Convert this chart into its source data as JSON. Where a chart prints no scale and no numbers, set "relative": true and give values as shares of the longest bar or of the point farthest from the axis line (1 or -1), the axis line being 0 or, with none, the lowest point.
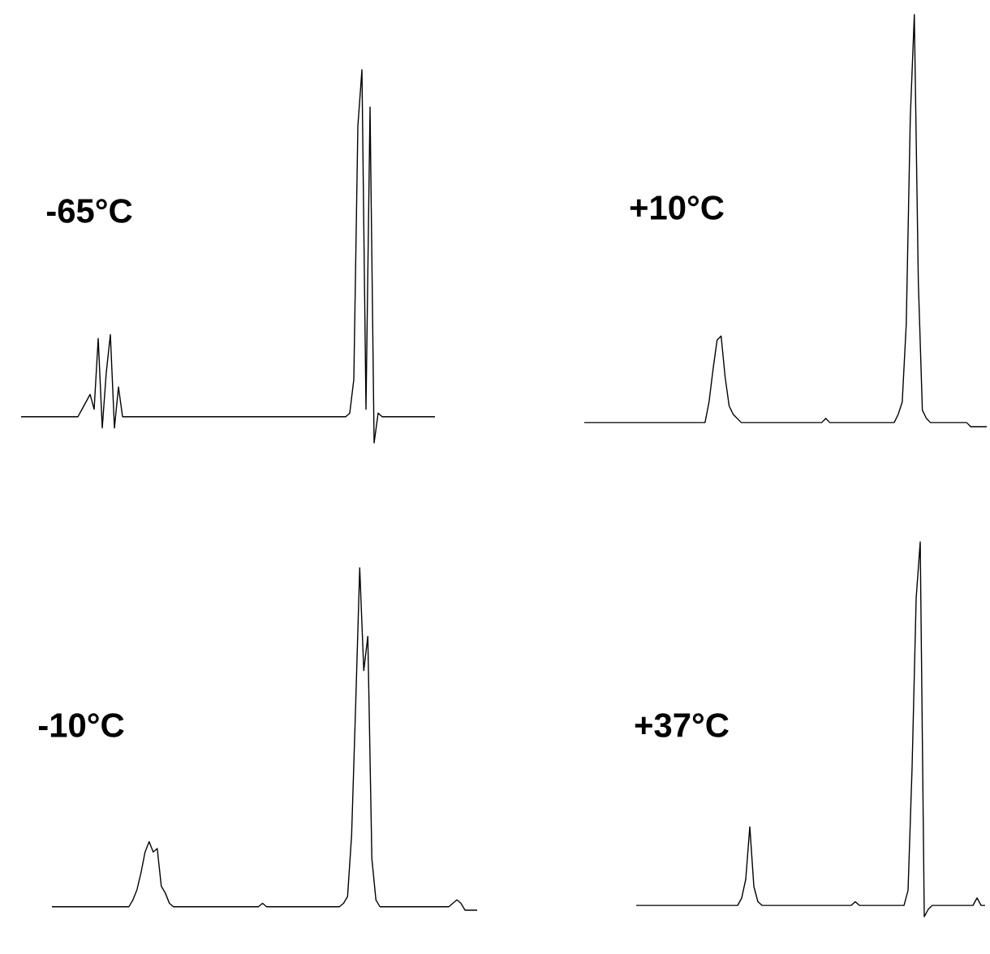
{
  "chart_data": [
    {
      "type": "line",
      "title": "-65°C",
      "relative": true,
      "categories": [
        null,
        null,
        null,
        null,
        null,
        null,
        null,
        null,
        null,
        null,
        null,
        null,
        null,
        null,
        null,
        null,
        null,
        null,
        null,
        null,
        null,
        null,
        null,
        null,
        null,
        null,
        null,
        null,
        null,
        null,
        null,
        null,
        null,
        null,
        null,
        null,
        null,
        null,
        null,
        null,
        null,
        null,
        null,
        null,
        null,
        null,
        null,
        null,
        null,
        null,
        null,
        null,
        null,
        null,
        null,
        null,
        null,
        null,
        null,
        null,
        null,
        null,
        null,
        null,
        null,
        null,
        null,
        null,
        null,
        null,
        null,
        null,
        null,
        null,
        null,
        null,
        null,
        null,
        null,
        null,
        null,
        null,
        null,
        null,
        null,
        null,
        null,
        null,
        null,
        null,
        null,
        null,
        null,
        null,
        null,
        null,
        null,
        null,
        null,
        null,
        null,
        null,
        null
      ],
      "series": [
        {
          "color": "#000000",
          "values": [
            0.07,
            0.07,
            0.07,
            0.07,
            0.07,
            0.07,
            0.07,
            0.07,
            0.07,
            0.07,
            0.07,
            0.07,
            0.07,
            0.07,
            0.07,
            0.09,
            0.11,
            0.13,
            0.09,
            0.28,
            0.04,
            0.19,
            0.29,
            0.04,
            0.15,
            0.07,
            0.07,
            0.07,
            0.07,
            0.07,
            0.07,
            0.07,
            0.07,
            0.07,
            0.07,
            0.07,
            0.07,
            0.07,
            0.07,
            0.07,
            0.07,
            0.07,
            0.07,
            0.07,
            0.07,
            0.07,
            0.07,
            0.07,
            0.07,
            0.07,
            0.07,
            0.07,
            0.07,
            0.07,
            0.07,
            0.07,
            0.07,
            0.07,
            0.07,
            0.07,
            0.07,
            0.07,
            0.07,
            0.07,
            0.07,
            0.07,
            0.07,
            0.07,
            0.07,
            0.07,
            0.07,
            0.07,
            0.07,
            0.07,
            0.07,
            0.07,
            0.07,
            0.07,
            0.07,
            0.07,
            0.07,
            0.08,
            0.17,
            0.85,
            1,
            0.09,
            0.9,
            0,
            0.08,
            0.07,
            0.07,
            0.07,
            0.07,
            0.07,
            0.07,
            0.07,
            0.07,
            0.07,
            0.07,
            0.07,
            0.07,
            0.07,
            0.07
          ]
        }
      ]
    },
    {
      "type": "line",
      "title": "+10°C",
      "relative": true,
      "categories": [
        null,
        null,
        null,
        null,
        null,
        null,
        null,
        null,
        null,
        null,
        null,
        null,
        null,
        null,
        null,
        null,
        null,
        null,
        null,
        null,
        null,
        null,
        null,
        null,
        null,
        null,
        null,
        null,
        null,
        null,
        null,
        null,
        null,
        null,
        null,
        null,
        null,
        null,
        null,
        null,
        null,
        null,
        null,
        null,
        null,
        null,
        null,
        null,
        null,
        null,
        null,
        null,
        null,
        null,
        null,
        null,
        null,
        null,
        null,
        null,
        null,
        null,
        null,
        null,
        null,
        null,
        null,
        null,
        null,
        null,
        null,
        null,
        null,
        null,
        null,
        null,
        null,
        null,
        null,
        null,
        null,
        null,
        null,
        null,
        null,
        null,
        null,
        null,
        null,
        null,
        null,
        null,
        null,
        null,
        null,
        null,
        null,
        null,
        null,
        null,
        null
      ],
      "series": [
        {
          "color": "#000000",
          "values": [
            0.01,
            0.01,
            0.01,
            0.01,
            0.01,
            0.01,
            0.01,
            0.01,
            0.01,
            0.01,
            0.01,
            0.01,
            0.01,
            0.01,
            0.01,
            0.01,
            0.01,
            0.01,
            0.01,
            0.01,
            0.01,
            0.01,
            0.01,
            0.01,
            0.01,
            0.01,
            0.01,
            0.01,
            0.01,
            0.01,
            0.01,
            0.06,
            0.14,
            0.21,
            0.22,
            0.12,
            0.05,
            0.03,
            0.02,
            0.01,
            0.01,
            0.01,
            0.01,
            0.01,
            0.01,
            0.01,
            0.01,
            0.01,
            0.01,
            0.01,
            0.01,
            0.01,
            0.01,
            0.01,
            0.01,
            0.01,
            0.01,
            0.01,
            0.01,
            0.01,
            0.02,
            0.01,
            0.01,
            0.01,
            0.01,
            0.01,
            0.01,
            0.01,
            0.01,
            0.01,
            0.01,
            0.01,
            0.01,
            0.01,
            0.01,
            0.01,
            0.01,
            0.01,
            0.03,
            0.06,
            0.25,
            0.75,
            1,
            0.35,
            0.04,
            0.02,
            0.01,
            0.01,
            0.01,
            0.01,
            0.01,
            0.01,
            0.01,
            0.01,
            0.01,
            0.01,
            0,
            0,
            0,
            0,
            0
          ]
        }
      ]
    },
    {
      "type": "line",
      "title": "-10°C",
      "relative": true,
      "categories": [
        null,
        null,
        null,
        null,
        null,
        null,
        null,
        null,
        null,
        null,
        null,
        null,
        null,
        null,
        null,
        null,
        null,
        null,
        null,
        null,
        null,
        null,
        null,
        null,
        null,
        null,
        null,
        null,
        null,
        null,
        null,
        null,
        null,
        null,
        null,
        null,
        null,
        null,
        null,
        null,
        null,
        null,
        null,
        null,
        null,
        null,
        null,
        null,
        null,
        null,
        null,
        null,
        null,
        null,
        null,
        null,
        null,
        null,
        null,
        null,
        null,
        null,
        null,
        null,
        null,
        null,
        null,
        null,
        null,
        null,
        null,
        null,
        null,
        null,
        null,
        null,
        null,
        null,
        null,
        null,
        null,
        null,
        null,
        null,
        null,
        null,
        null,
        null,
        null,
        null,
        null,
        null,
        null,
        null,
        null,
        null,
        null,
        null,
        null,
        null,
        null,
        null,
        null,
        null,
        null,
        null
      ],
      "series": [
        {
          "color": "#000000",
          "values": [
            0.01,
            0.01,
            0.01,
            0.01,
            0.01,
            0.01,
            0.01,
            0.01,
            0.01,
            0.01,
            0.01,
            0.01,
            0.01,
            0.01,
            0.01,
            0.01,
            0.01,
            0.01,
            0.01,
            0.01,
            0.03,
            0.06,
            0.11,
            0.17,
            0.2,
            0.17,
            0.18,
            0.07,
            0.05,
            0.02,
            0.01,
            0.01,
            0.01,
            0.01,
            0.01,
            0.01,
            0.01,
            0.01,
            0.01,
            0.01,
            0.01,
            0.01,
            0.01,
            0.01,
            0.01,
            0.01,
            0.01,
            0.01,
            0.01,
            0.01,
            0.01,
            0.01,
            0.02,
            0.01,
            0.01,
            0.01,
            0.01,
            0.01,
            0.01,
            0.01,
            0.01,
            0.01,
            0.01,
            0.01,
            0.01,
            0.01,
            0.01,
            0.01,
            0.01,
            0.01,
            0.01,
            0.01,
            0.02,
            0.04,
            0.22,
            0.6,
            1,
            0.7,
            0.8,
            0.15,
            0.03,
            0.01,
            0.01,
            0.01,
            0.01,
            0.01,
            0.01,
            0.01,
            0.01,
            0.01,
            0.01,
            0.01,
            0.01,
            0.01,
            0.01,
            0.01,
            0.01,
            0.01,
            0.01,
            0.02,
            0.03,
            0.02,
            0,
            0,
            0,
            0
          ]
        }
      ]
    },
    {
      "type": "line",
      "title": "+37°C",
      "relative": true,
      "categories": [
        null,
        null,
        null,
        null,
        null,
        null,
        null,
        null,
        null,
        null,
        null,
        null,
        null,
        null,
        null,
        null,
        null,
        null,
        null,
        null,
        null,
        null,
        null,
        null,
        null,
        null,
        null,
        null,
        null,
        null,
        null,
        null,
        null,
        null,
        null,
        null,
        null,
        null,
        null,
        null,
        null,
        null,
        null,
        null,
        null,
        null,
        null,
        null,
        null,
        null,
        null,
        null,
        null,
        null,
        null,
        null,
        null,
        null,
        null,
        null,
        null,
        null,
        null,
        null,
        null,
        null,
        null,
        null,
        null,
        null,
        null,
        null,
        null,
        null,
        null,
        null,
        null,
        null,
        null,
        null,
        null,
        null,
        null,
        null,
        null,
        null,
        null
      ],
      "series": [
        {
          "color": "#000000",
          "values": [
            0.03,
            0.03,
            0.03,
            0.03,
            0.03,
            0.03,
            0.03,
            0.03,
            0.03,
            0.03,
            0.03,
            0.03,
            0.03,
            0.03,
            0.03,
            0.03,
            0.03,
            0.03,
            0.03,
            0.03,
            0.03,
            0.03,
            0.03,
            0.03,
            0.03,
            0.03,
            0.05,
            0.1,
            0.24,
            0.08,
            0.04,
            0.03,
            0.03,
            0.03,
            0.03,
            0.03,
            0.03,
            0.03,
            0.03,
            0.03,
            0.03,
            0.03,
            0.03,
            0.03,
            0.03,
            0.03,
            0.03,
            0.03,
            0.03,
            0.03,
            0.03,
            0.03,
            0.03,
            0.03,
            0.04,
            0.03,
            0.03,
            0.03,
            0.03,
            0.03,
            0.03,
            0.03,
            0.03,
            0.03,
            0.03,
            0.03,
            0.03,
            0.07,
            0.4,
            0.85,
            1,
            0,
            0.02,
            0.03,
            0.03,
            0.03,
            0.03,
            0.03,
            0.03,
            0.03,
            0.03,
            0.03,
            0.03,
            0.03,
            0.05,
            0.03,
            0.03
          ]
        }
      ]
    }
  ]
}
